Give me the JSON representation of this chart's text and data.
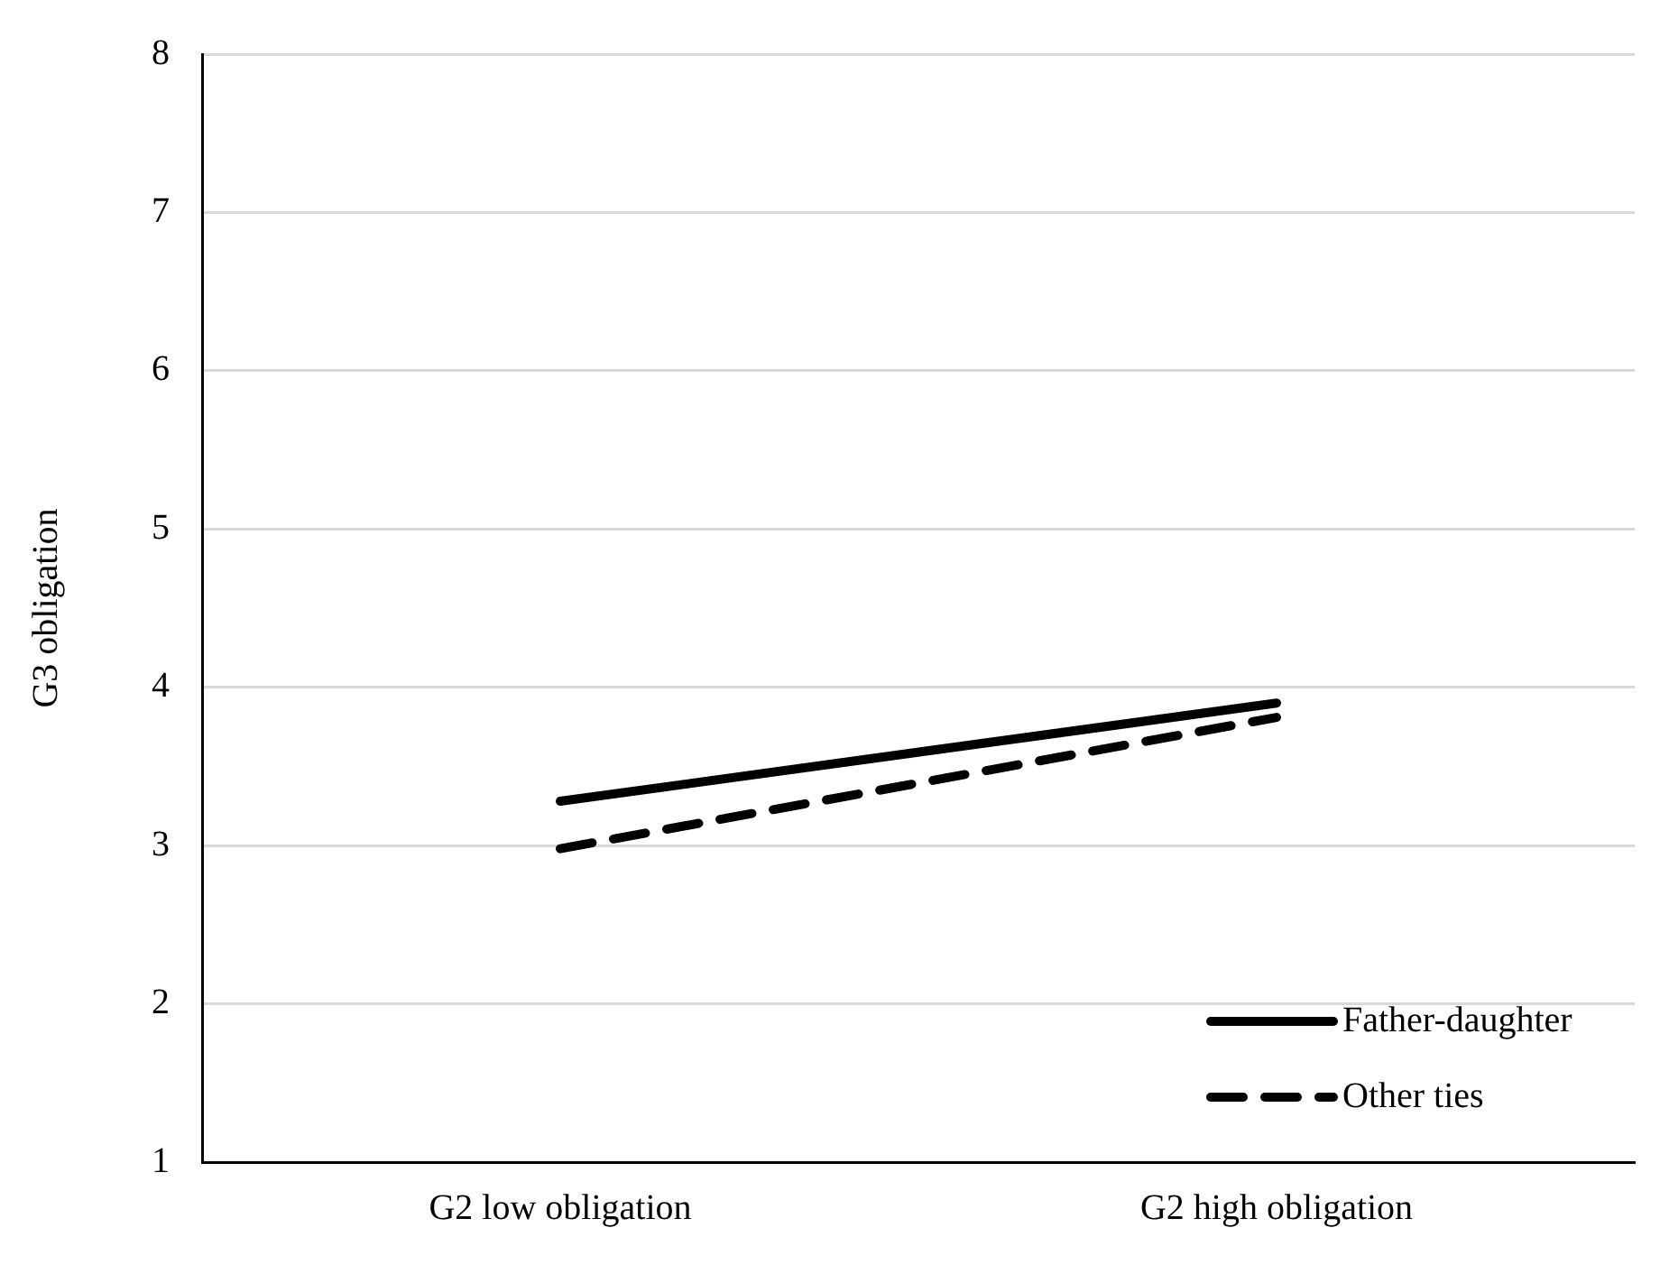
{
  "chart_data": {
    "type": "line",
    "ylabel": "G3 obligation",
    "categories": [
      "G2 low obligation",
      "G2 high obligation"
    ],
    "series": [
      {
        "name": "Father-daughter",
        "color": "#000000",
        "values": [
          3.28,
          3.9
        ],
        "line_style": "solid"
      },
      {
        "name": "Other ties",
        "color": "#000000",
        "values": [
          2.98,
          3.81
        ],
        "line_style": "dashed"
      }
    ],
    "ylim": [
      1,
      8
    ],
    "yticks": [
      1,
      2,
      3,
      4,
      5,
      6,
      7,
      8
    ],
    "grid": "y",
    "legend": "bottom right",
    "marker": "none"
  }
}
